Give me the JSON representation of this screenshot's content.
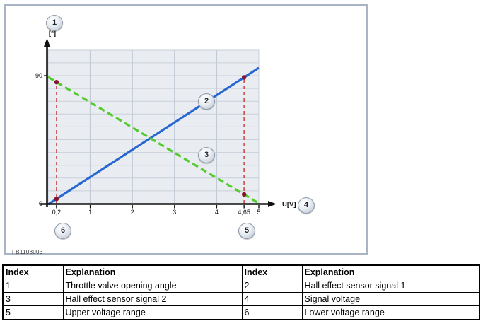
{
  "figure": {
    "figure_code": "FB1108003",
    "y_axis": {
      "unit_label": "[°]",
      "callout": "1",
      "ticks": [
        {
          "label": "0",
          "value": 0
        },
        {
          "label": "90",
          "value": 90
        }
      ]
    },
    "x_axis": {
      "unit_label": "U[V]",
      "callout": "4",
      "ticks": [
        {
          "label": "0,2",
          "value": 0.2
        },
        {
          "label": "1",
          "value": 1
        },
        {
          "label": "2",
          "value": 2
        },
        {
          "label": "3",
          "value": 3
        },
        {
          "label": "4",
          "value": 4
        },
        {
          "label": "4,65",
          "value": 4.65
        },
        {
          "label": "5",
          "value": 5
        }
      ]
    },
    "callouts": [
      {
        "label": "1"
      },
      {
        "label": "2"
      },
      {
        "label": "3"
      },
      {
        "label": "4"
      },
      {
        "label": "5"
      },
      {
        "label": "6"
      }
    ],
    "chart_data": {
      "type": "line",
      "xlabel": "U[V]",
      "ylabel": "[°]",
      "xlim": [
        0,
        5
      ],
      "ylim": [
        0,
        105
      ],
      "x_ticks": [
        0.2,
        1,
        2,
        3,
        4,
        4.65,
        5
      ],
      "y_ticks": [
        0,
        90
      ],
      "grid": true,
      "series": [
        {
          "name": "Hall effect sensor signal 1",
          "callout": "2",
          "color": "#2767d2",
          "style": "solid",
          "points": [
            [
              0,
              -0.5
            ],
            [
              5,
              95.5
            ]
          ],
          "marked_x": [
            0.2,
            4.65
          ]
        },
        {
          "name": "Hall effect sensor signal 2",
          "callout": "3",
          "color": "#55cb2f",
          "style": "dashed",
          "points": [
            [
              0,
              89
            ],
            [
              5,
              0.3
            ]
          ],
          "marked_x": [
            0.2,
            4.65
          ]
        }
      ],
      "reference_lines": [
        {
          "x": 0.2,
          "label": "0,2",
          "callout": "6",
          "color": "#c8504f",
          "style": "dashed"
        },
        {
          "x": 4.65,
          "label": "4,65",
          "callout": "5",
          "color": "#c8504f",
          "style": "dashed"
        }
      ],
      "marker_color": "#86162e"
    },
    "colors": {
      "plot_background": "#e9edf2",
      "grid_line": "#c9d0da",
      "grid_line_vertical": "#c2cad6",
      "axis": "#111111",
      "panel_border": "#a9b5c5"
    }
  },
  "table": {
    "columns": [
      "Index",
      "Explanation",
      "Index",
      "Explanation"
    ],
    "rows": [
      [
        "1",
        "Throttle valve opening angle",
        "2",
        "Hall effect sensor signal 1"
      ],
      [
        "3",
        "Hall effect sensor signal 2",
        "4",
        "Signal voltage"
      ],
      [
        "5",
        "Upper voltage range",
        "6",
        "Lower voltage range"
      ]
    ]
  }
}
